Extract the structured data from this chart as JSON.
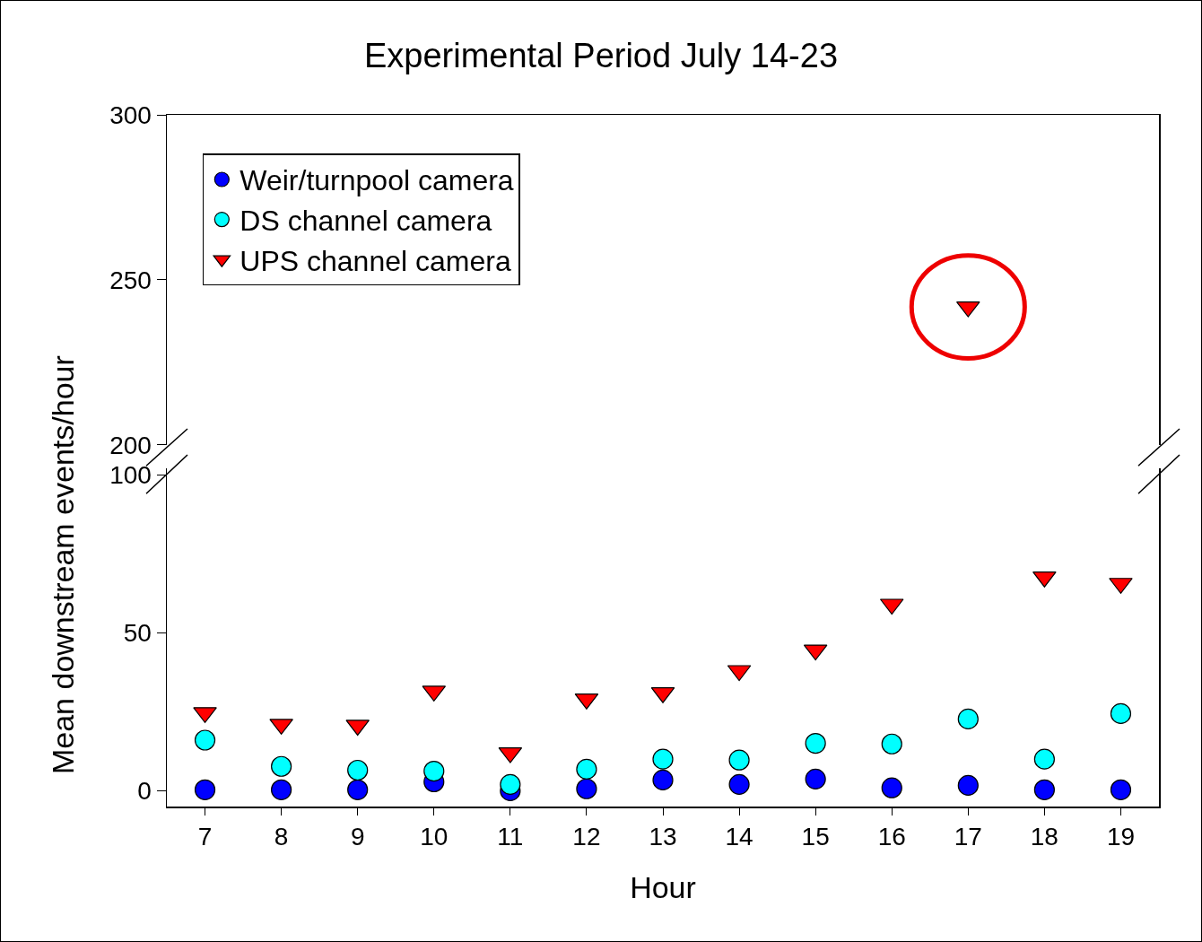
{
  "chart_data": [
    {
      "type": "scatter",
      "title": "Experimental Period July 14-23",
      "ylabel": "Mean downstream events/hour",
      "x": [
        17
      ],
      "xlim": [
        6.5,
        19.5
      ],
      "xticks": [
        7,
        8,
        9,
        10,
        11,
        12,
        13,
        14,
        15,
        16,
        17,
        18,
        19
      ],
      "ylim": [
        200,
        300
      ],
      "yticks": [
        200,
        250,
        300
      ],
      "tick_labels": "y",
      "grid": false,
      "series": [
        {
          "color": "#ff0000",
          "marker": "triangle",
          "values": [
            241.8
          ]
        }
      ]
    },
    {
      "type": "scatter",
      "xlabel": "Hour",
      "x": [
        7,
        8,
        9,
        10,
        11,
        12,
        13,
        14,
        15,
        16,
        17,
        18,
        19
      ],
      "xlim": [
        6.5,
        19.5
      ],
      "xticks": [
        7,
        8,
        9,
        10,
        11,
        12,
        13,
        14,
        15,
        16,
        17,
        18,
        19
      ],
      "ylim": [
        -5,
        102
      ],
      "yticks": [
        0,
        50,
        100
      ],
      "grid": false,
      "legend": "top left",
      "series": [
        {
          "name": "Weir/turnpool camera",
          "color": "#0000ff",
          "marker": "circle",
          "values": [
            0.3,
            0.3,
            0.3,
            2.8,
            0,
            0.6,
            3.4,
            2,
            3.7,
            0.9,
            1.7,
            0.3,
            0.3
          ]
        },
        {
          "name": "DS channel camera",
          "color": "#00ffff",
          "marker": "circle",
          "values": [
            16,
            7.7,
            6.5,
            6.2,
            2,
            6.8,
            10,
            9.7,
            15,
            14.8,
            22.7,
            10,
            24.4
          ]
        },
        {
          "name": "UPS channel camera",
          "color": "#ff0000",
          "marker": "triangle",
          "values": [
            24.7,
            21,
            20.7,
            31.5,
            12,
            29,
            31,
            38,
            44.5,
            59,
            null,
            67.6,
            65.6
          ]
        }
      ]
    }
  ]
}
